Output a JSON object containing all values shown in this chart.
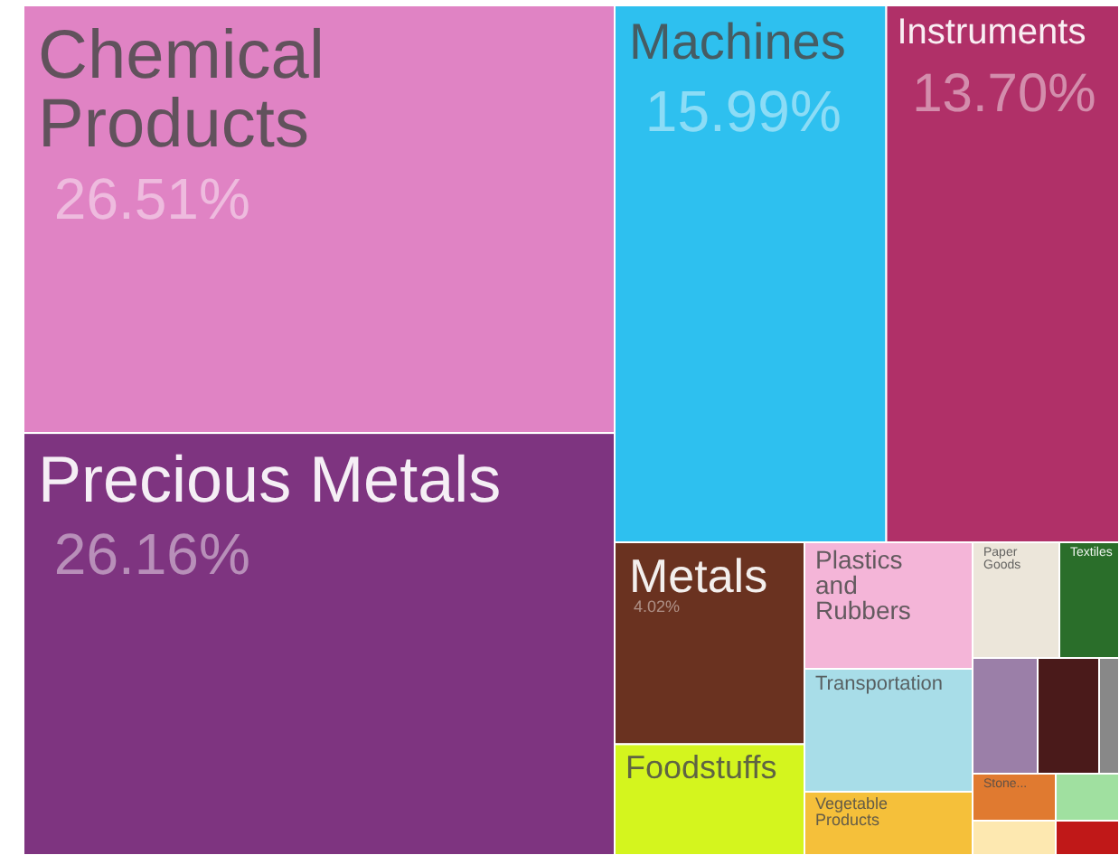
{
  "chart_data": {
    "type": "other",
    "categories": [
      "Chemical Products",
      "Precious Metals",
      "Machines",
      "Instruments",
      "Metals",
      "Foodstuffs",
      "Plastics and Rubbers",
      "Transportation",
      "Vegetable Products",
      "Paper Goods",
      "Textiles",
      null,
      null,
      null,
      "Stone...",
      null,
      null,
      null
    ],
    "values": [
      26.51,
      26.16,
      15.99,
      13.7,
      4.02,
      null,
      null,
      null,
      null,
      null,
      null,
      null,
      null,
      null,
      null,
      null,
      null,
      null
    ],
    "value_labels": [
      "26.51%",
      "26.16%",
      "15.99%",
      "13.70%",
      "4.02%",
      null,
      null,
      null,
      null,
      null,
      null,
      null,
      null,
      null,
      null,
      null,
      null,
      null
    ],
    "colors": [
      "#e083c4",
      "#7e3480",
      "#2ec0ef",
      "#b03068",
      "#6a3220",
      "#d4f51e",
      "#f4b5d8",
      "#a8dde8",
      "#f5c03a",
      "#ece6da",
      "#2a6e2a",
      "#9b7fa8",
      "#4a1a1a",
      "#888888",
      "#e07a30",
      "#a0e0a0",
      "#fde8b0",
      "#c01818"
    ]
  }
}
